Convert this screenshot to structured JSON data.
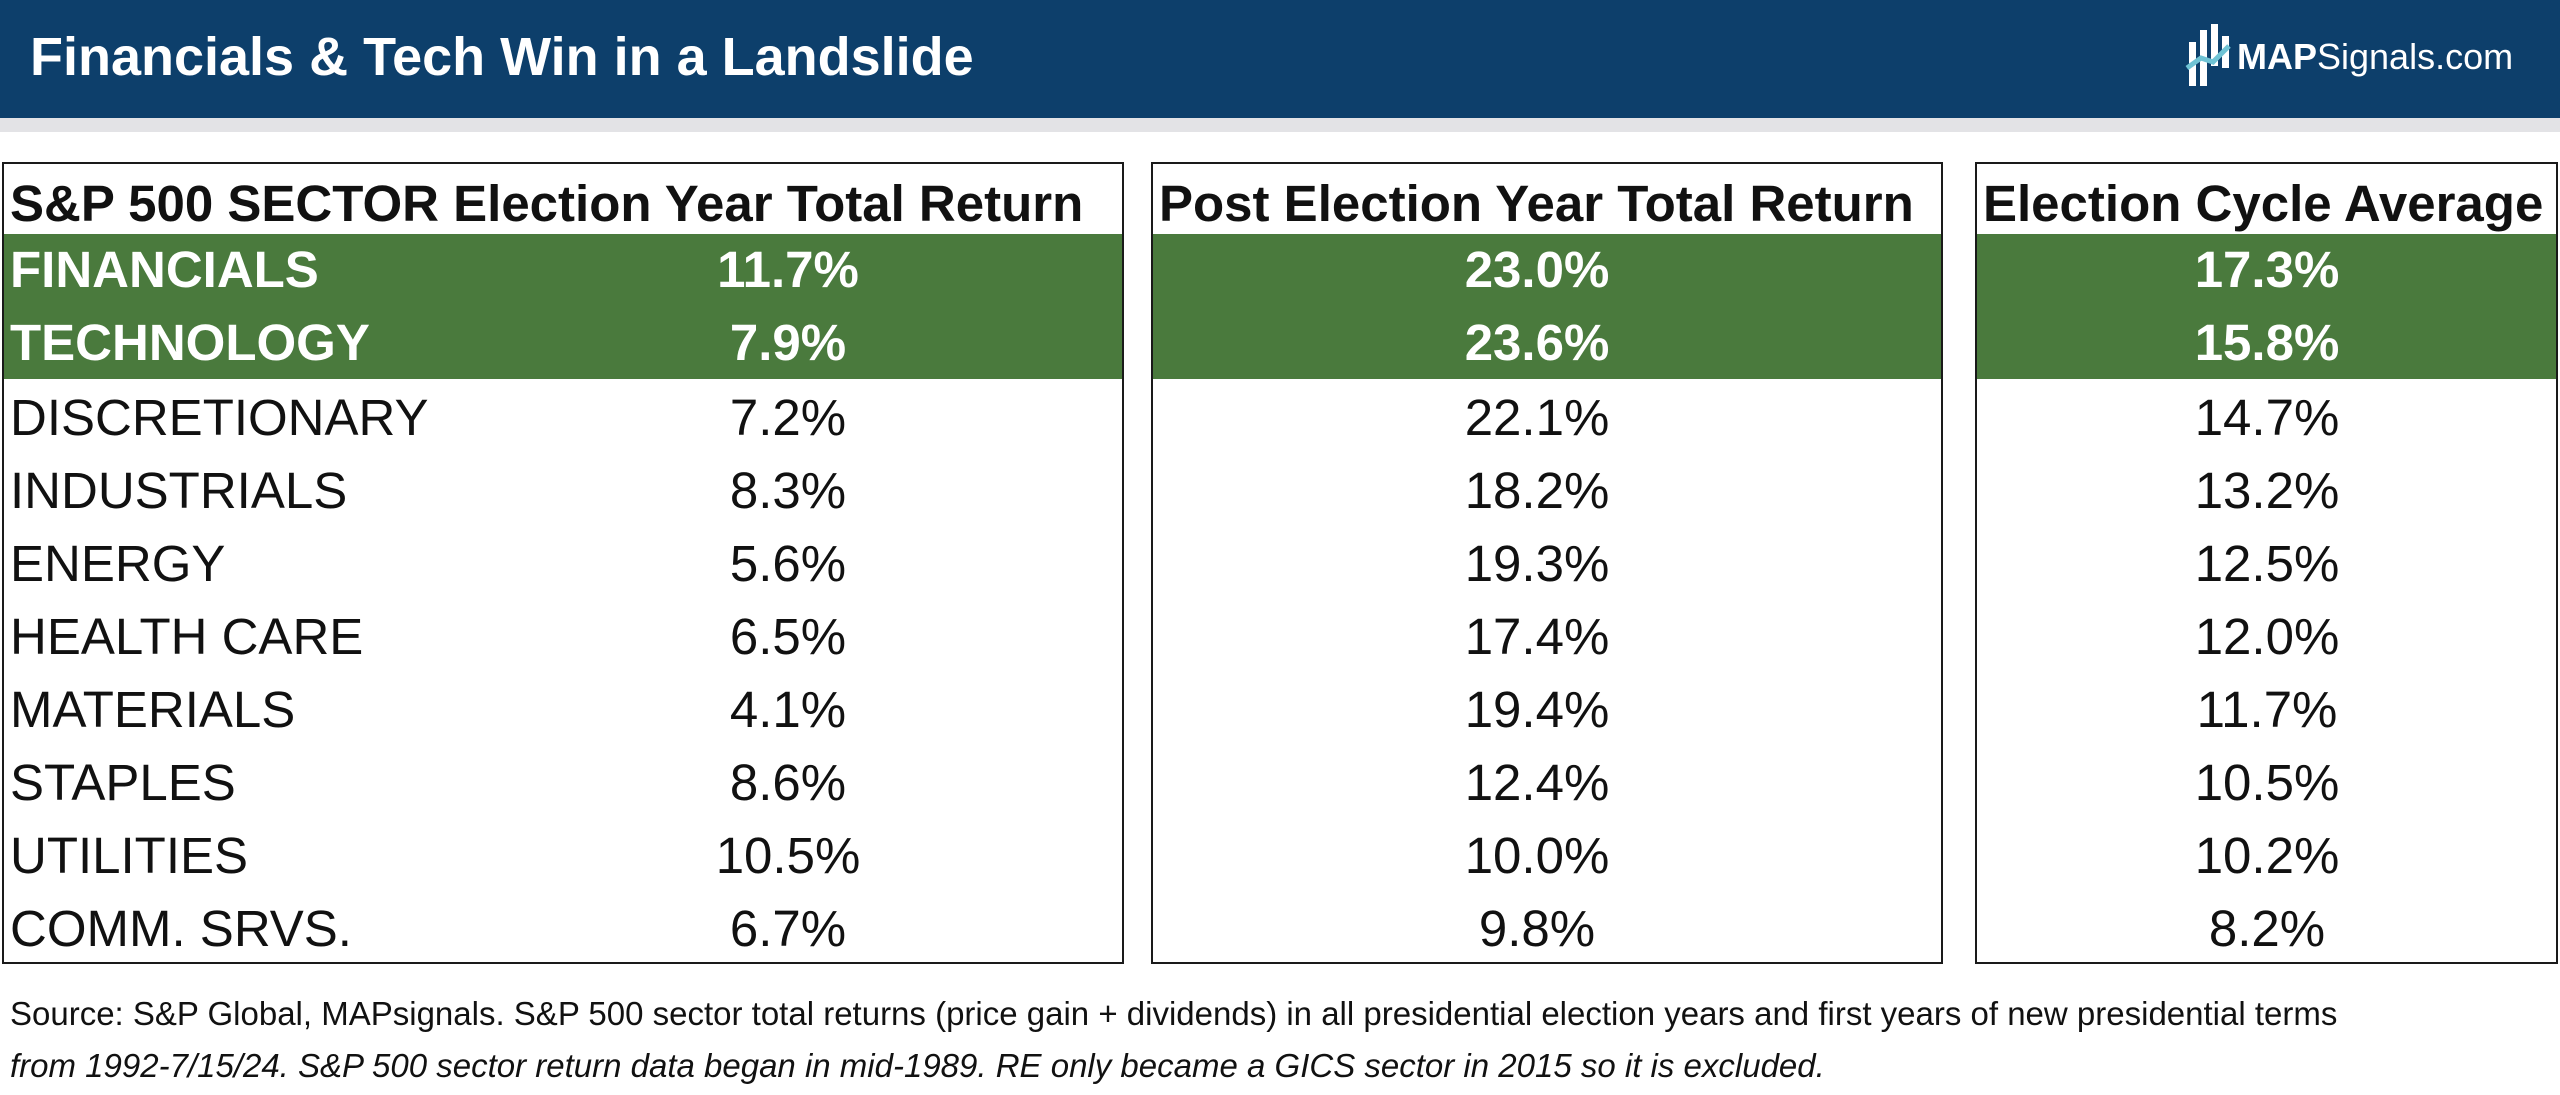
{
  "header": {
    "title": "Financials & Tech Win in a Landslide",
    "logo": {
      "bold": "MAP",
      "rest": "Signals.com"
    }
  },
  "colors": {
    "header_bg": "#0d3f6b",
    "highlight_green": "#4a7a3d",
    "rule_gray": "#e3e3e6"
  },
  "chart_data": {
    "type": "table",
    "title": "Financials & Tech Win in a Landslide",
    "columns": [
      "S&P 500 SECTOR",
      "Election Year Total Return",
      "Post Election Year Total Return",
      "Election Cycle Average"
    ],
    "highlighted_rows": [
      "FINANCIALS",
      "TECHNOLOGY"
    ],
    "rows": [
      {
        "sector": "FINANCIALS",
        "election_year": "11.7%",
        "post_election_year": "23.0%",
        "cycle_average": "17.3%",
        "highlight": true
      },
      {
        "sector": "TECHNOLOGY",
        "election_year": "7.9%",
        "post_election_year": "23.6%",
        "cycle_average": "15.8%",
        "highlight": true
      },
      {
        "sector": "DISCRETIONARY",
        "election_year": "7.2%",
        "post_election_year": "22.1%",
        "cycle_average": "14.7%",
        "highlight": false
      },
      {
        "sector": "INDUSTRIALS",
        "election_year": "8.3%",
        "post_election_year": "18.2%",
        "cycle_average": "13.2%",
        "highlight": false
      },
      {
        "sector": "ENERGY",
        "election_year": "5.6%",
        "post_election_year": "19.3%",
        "cycle_average": "12.5%",
        "highlight": false
      },
      {
        "sector": "HEALTH CARE",
        "election_year": "6.5%",
        "post_election_year": "17.4%",
        "cycle_average": "12.0%",
        "highlight": false
      },
      {
        "sector": "MATERIALS",
        "election_year": "4.1%",
        "post_election_year": "19.4%",
        "cycle_average": "11.7%",
        "highlight": false
      },
      {
        "sector": "STAPLES",
        "election_year": "8.6%",
        "post_election_year": "12.4%",
        "cycle_average": "10.5%",
        "highlight": false
      },
      {
        "sector": "UTILITIES",
        "election_year": "10.5%",
        "post_election_year": "10.0%",
        "cycle_average": "10.2%",
        "highlight": false
      },
      {
        "sector": "COMM. SRVS.",
        "election_year": "6.7%",
        "post_election_year": "9.8%",
        "cycle_average": "8.2%",
        "highlight": false
      }
    ]
  },
  "table": {
    "header1": "S&P 500 SECTOR Election Year Total Return",
    "header2": "Post Election Year Total Return",
    "header3": "Election Cycle Average"
  },
  "footer": {
    "source_line1": "Source: S&P Global, MAPsignals. S&P 500 sector total returns (price gain + dividends) in all presidential election years and first years of new presidential terms",
    "source_line2": "from 1992-7/15/24. S&P 500 sector return data began in mid-1989. RE only became a GICS sector in 2015 so it is excluded."
  }
}
